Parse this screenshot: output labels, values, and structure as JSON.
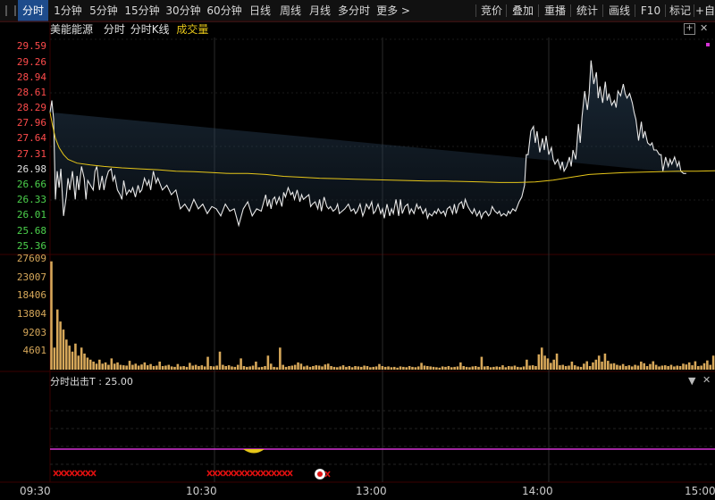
{
  "toolbar": {
    "left_tabs": [
      "分时",
      "1分钟",
      "5分钟",
      "15分钟",
      "30分钟",
      "60分钟",
      "日线",
      "周线",
      "月线",
      "多分时",
      "更多 >"
    ],
    "right_tabs": [
      "竞价",
      "叠加",
      "重播",
      "统计",
      "画线",
      "F10",
      "标记",
      "+自"
    ]
  },
  "info": {
    "name": "美能能源",
    "mode": "分时",
    "kline": "分时K线",
    "volume": "成交量"
  },
  "indicator": {
    "label": "分时出击T : 25.00"
  },
  "colors": {
    "price": "#e8e8e8",
    "avg": "#e6c619",
    "up": "#ff4b4b",
    "down": "#4cd24c",
    "volume": "#d7a85a",
    "magenta": "#d633d6"
  },
  "chart_data": {
    "type": "line",
    "price_ticks": [
      "29.59",
      "29.26",
      "28.94",
      "28.61",
      "28.29",
      "27.96",
      "27.64",
      "27.31",
      "26.98",
      "26.66",
      "26.33",
      "26.01",
      "25.68",
      "25.36"
    ],
    "volume_ticks": [
      "27609",
      "23007",
      "18406",
      "13804",
      "9203",
      "4601"
    ],
    "x_ticks": [
      "09:30",
      "10:30",
      "13:00",
      "14:00",
      "15:00"
    ],
    "price_ylim": [
      25.2,
      29.75
    ],
    "volume_ylim": [
      0,
      28500
    ],
    "price_x": [
      0,
      2,
      4,
      6,
      8,
      10,
      12,
      15,
      18,
      20,
      22,
      25,
      28,
      30,
      32,
      35,
      38,
      40,
      42,
      45,
      48,
      50,
      52,
      55,
      58,
      60,
      62,
      65,
      68,
      70,
      72,
      75,
      78,
      80,
      82,
      85,
      88,
      90,
      92,
      95,
      98,
      100,
      102,
      105,
      108,
      110,
      112,
      115,
      118,
      120,
      125,
      130,
      135,
      140,
      145,
      150,
      155,
      160,
      165,
      170,
      175,
      180,
      185,
      190,
      195,
      200,
      205,
      210,
      215,
      220,
      225,
      230,
      235,
      240,
      242,
      244,
      246,
      248,
      250,
      252,
      255,
      258,
      260,
      262,
      265,
      268,
      270,
      272,
      275,
      278,
      280,
      282,
      285,
      288,
      290,
      292,
      295,
      298,
      300,
      302,
      305,
      308,
      310,
      312,
      315,
      318,
      320,
      322,
      325,
      328,
      330,
      332,
      335,
      338,
      340,
      342,
      345,
      348,
      350,
      352,
      355,
      358,
      360,
      362,
      365,
      368,
      370,
      372,
      375,
      378,
      380,
      382,
      385,
      388,
      390,
      392,
      395,
      398,
      400,
      402,
      405,
      408,
      410,
      412,
      415,
      418,
      420,
      422,
      425,
      428,
      430,
      432,
      435,
      438,
      440,
      442,
      445,
      448,
      450,
      452,
      455,
      458,
      460,
      462,
      465,
      468,
      470,
      472,
      475,
      478,
      480,
      482,
      485,
      488,
      490,
      492,
      495,
      498,
      500,
      502,
      505,
      508,
      510,
      512,
      515,
      518,
      520,
      522,
      525,
      528,
      530,
      532,
      535,
      538,
      540,
      542,
      545,
      548,
      550,
      552,
      555,
      558,
      560,
      562,
      565,
      568,
      570,
      572,
      575,
      578,
      580,
      582,
      585,
      588,
      590,
      592,
      595,
      598,
      600,
      602,
      605,
      608,
      610,
      612,
      615,
      618,
      620,
      622,
      625,
      628,
      630,
      632,
      635,
      638,
      640,
      642,
      645,
      648,
      650,
      652,
      655,
      658,
      660,
      662,
      665,
      668,
      670,
      672,
      675,
      678,
      680,
      682,
      685,
      688,
      690,
      692,
      695,
      698,
      700,
      702,
      705,
      708,
      710,
      712,
      715,
      718,
      720,
      722,
      725,
      728,
      730,
      732,
      735,
      738,
      740
    ],
    "price": [
      28.2,
      28.45,
      28.05,
      26.35,
      26.95,
      26.6,
      27.0,
      26.0,
      26.4,
      26.8,
      26.55,
      26.95,
      26.35,
      26.85,
      26.55,
      27.05,
      26.8,
      26.35,
      26.75,
      26.65,
      26.55,
      26.95,
      27.05,
      26.55,
      26.85,
      26.55,
      26.75,
      26.95,
      27.0,
      26.75,
      26.85,
      26.55,
      26.45,
      26.35,
      26.75,
      26.45,
      26.55,
      26.5,
      26.6,
      26.4,
      26.65,
      26.5,
      26.55,
      26.8,
      26.65,
      26.75,
      26.55,
      26.95,
      26.7,
      26.8,
      26.55,
      26.65,
      26.45,
      26.55,
      26.15,
      26.25,
      26.1,
      26.35,
      26.15,
      26.25,
      26.05,
      26.2,
      26.15,
      26.0,
      26.25,
      26.1,
      26.15,
      25.8,
      26.15,
      26.3,
      26.0,
      26.15,
      26.1,
      26.45,
      26.2,
      26.35,
      26.15,
      26.35,
      26.4,
      26.25,
      26.4,
      26.2,
      26.5,
      26.4,
      26.6,
      26.45,
      26.5,
      26.35,
      26.55,
      26.3,
      26.45,
      26.35,
      26.4,
      26.45,
      26.2,
      26.25,
      26.3,
      26.15,
      26.35,
      26.1,
      26.4,
      26.2,
      26.15,
      26.2,
      26.1,
      26.15,
      26.25,
      26.05,
      26.1,
      26.15,
      26.2,
      26.25,
      26.1,
      26.15,
      26.05,
      26.1,
      26.25,
      26.0,
      26.1,
      26.25,
      26.15,
      26.3,
      26.05,
      26.1,
      26.25,
      26.05,
      26.15,
      25.95,
      26.25,
      26.0,
      26.15,
      26.05,
      26.35,
      26.0,
      26.35,
      26.05,
      26.2,
      26.25,
      26.05,
      26.15,
      26.05,
      26.25,
      26.15,
      26.2,
      26.05,
      26.15,
      25.95,
      26.05,
      26.0,
      26.1,
      26.05,
      26.15,
      26.05,
      26.1,
      26.0,
      26.15,
      26.2,
      26.05,
      26.25,
      26.05,
      26.25,
      26.3,
      26.15,
      26.35,
      26.2,
      26.1,
      26.05,
      26.15,
      26.0,
      26.1,
      25.95,
      26.05,
      26.1,
      26.0,
      26.05,
      26.2,
      26.1,
      26.05,
      26.1,
      26.0,
      26.05,
      26.0,
      26.1,
      26.05,
      26.15,
      26.1,
      26.2,
      26.3,
      26.4,
      26.65,
      27.3,
      27.3,
      27.8,
      27.9,
      27.55,
      27.8,
      27.35,
      27.65,
      27.4,
      27.7,
      27.3,
      27.45,
      27.2,
      27.1,
      27.2,
      27.0,
      27.15,
      26.95,
      27.05,
      27.25,
      27.05,
      27.4,
      27.2,
      27.95,
      27.55,
      28.1,
      28.65,
      28.25,
      28.6,
      29.3,
      28.8,
      29.05,
      28.5,
      28.75,
      28.4,
      28.85,
      28.45,
      28.6,
      28.35,
      28.45,
      28.3,
      28.65,
      28.55,
      28.8,
      28.6,
      28.5,
      28.6,
      28.4,
      28.2,
      28.05,
      27.6,
      28.0,
      27.65,
      27.8,
      27.55,
      27.5,
      27.55,
      27.4,
      27.4,
      27.3,
      27.3,
      26.95,
      27.25,
      27.05,
      27.2,
      27.1,
      27.25,
      27.05,
      27.15,
      26.95,
      26.9,
      26.9
    ],
    "avg_x": [
      0,
      3,
      6,
      10,
      15,
      20,
      30,
      45,
      60,
      80,
      100,
      120,
      140,
      160,
      180,
      200,
      220,
      240,
      260,
      280,
      300,
      320,
      340,
      360,
      380,
      400,
      420,
      440,
      460,
      480,
      500,
      520,
      540,
      560,
      580,
      600,
      620,
      640,
      660,
      680,
      700,
      720,
      740
    ],
    "avg": [
      28.2,
      27.9,
      27.65,
      27.45,
      27.3,
      27.2,
      27.12,
      27.08,
      27.05,
      27.02,
      27.0,
      26.98,
      26.95,
      26.94,
      26.92,
      26.9,
      26.9,
      26.88,
      26.84,
      26.82,
      26.8,
      26.79,
      26.78,
      26.77,
      26.76,
      26.75,
      26.74,
      26.74,
      26.73,
      26.72,
      26.71,
      26.71,
      26.72,
      26.76,
      26.82,
      26.88,
      26.9,
      26.92,
      26.93,
      26.94,
      26.95,
      26.95,
      26.96
    ],
    "volume": [
      27000,
      5500,
      15000,
      12000,
      10000,
      7500,
      6000,
      4500,
      6500,
      3500,
      5500,
      4000,
      3000,
      2500,
      2000,
      1500,
      2500,
      1500,
      1800,
      1200,
      2800,
      1500,
      1800,
      1200,
      1100,
      1000,
      2200,
      1200,
      1500,
      1000,
      1300,
      1800,
      1100,
      1400,
      900,
      1000,
      2000,
      900,
      1000,
      1200,
      800,
      700,
      1400,
      800,
      900,
      700,
      1700,
      1000,
      1200,
      900,
      1100,
      800,
      3200,
      900,
      800,
      1000,
      4500,
      1200,
      900,
      1100,
      800,
      700,
      1200,
      2800,
      900,
      700,
      800,
      1000,
      2000,
      600,
      700,
      900,
      3500,
      1500,
      700,
      600,
      5500,
      1200,
      700,
      900,
      1000,
      1200,
      1800,
      1500,
      800,
      1000,
      700,
      900,
      1100,
      1000,
      800,
      1300,
      1500,
      900,
      700,
      600,
      800,
      1100,
      700,
      900,
      600,
      900,
      800,
      700,
      1000,
      900,
      600,
      700,
      800,
      1400,
      900,
      700,
      800,
      600,
      700,
      500,
      800,
      700,
      600,
      900,
      700,
      600,
      800,
      1700,
      1000,
      900,
      800,
      700,
      600,
      500,
      800,
      700,
      900,
      600,
      700,
      800,
      1800,
      900,
      700,
      600,
      800,
      900,
      700,
      3200,
      800,
      900,
      600,
      700,
      800,
      700,
      1100,
      600,
      900,
      800,
      1000,
      700,
      600,
      800,
      2500,
      1000,
      1100,
      900,
      3800,
      5500,
      3500,
      2800,
      1700,
      2500,
      4000,
      1100,
      1200,
      900,
      1000,
      2000,
      1100,
      800,
      700,
      1500,
      2100,
      900,
      1800,
      2500,
      3500,
      2000,
      4000,
      2200,
      1500,
      1600,
      1200,
      1000,
      1400,
      900,
      1100,
      800,
      1200,
      1000,
      2000,
      1600,
      900,
      1400,
      2100,
      1200,
      800,
      1000,
      1100,
      900,
      1200,
      800,
      1000,
      900,
      1500,
      1300,
      1800,
      1100,
      2100,
      900,
      1000,
      1600,
      2300,
      1200,
      3500
    ]
  }
}
